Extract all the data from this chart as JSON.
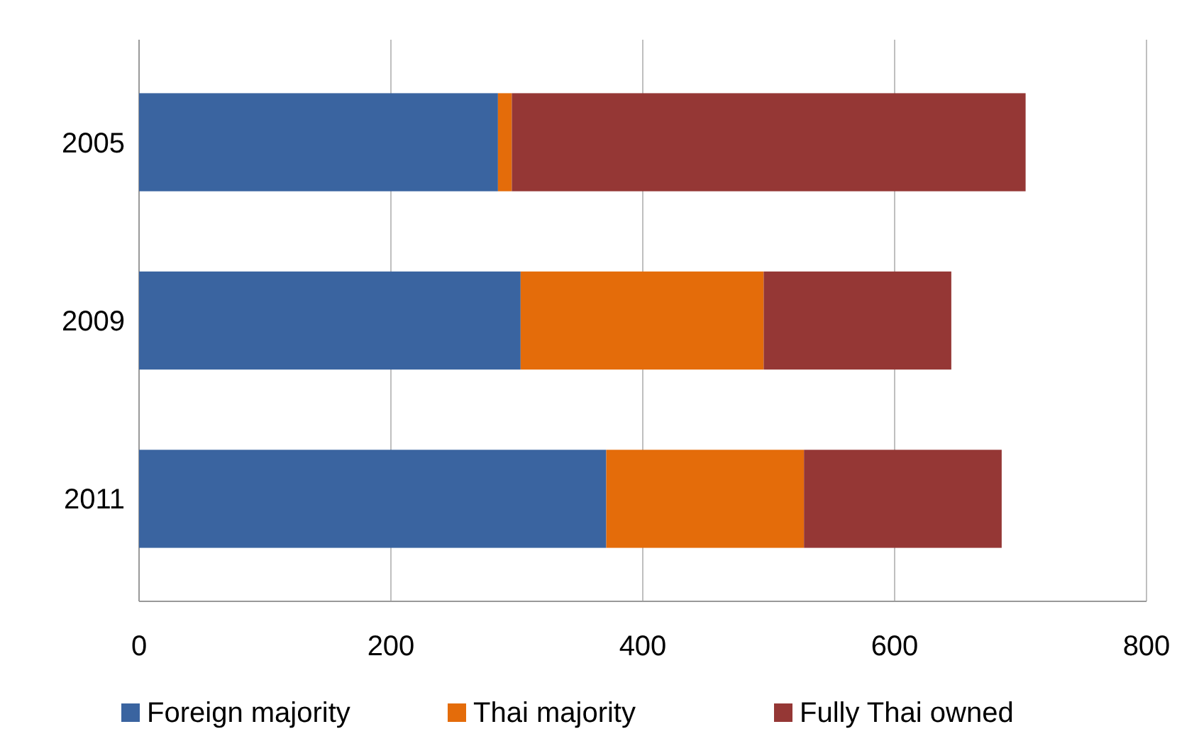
{
  "chart_data": {
    "type": "bar",
    "orientation": "horizontal",
    "stacked": true,
    "categories": [
      "2005",
      "2009",
      "2011"
    ],
    "series": [
      {
        "name": "Foreign majority",
        "color": "#3a64a0",
        "values": [
          285,
          303,
          371
        ]
      },
      {
        "name": "Thai majority",
        "color": "#e46c0a",
        "values": [
          11,
          193,
          157
        ]
      },
      {
        "name": "Fully Thai owned",
        "color": "#953735",
        "values": [
          408,
          149,
          157
        ]
      }
    ],
    "xlim": [
      0,
      800
    ],
    "xticks": [
      0,
      200,
      400,
      600,
      800
    ],
    "grid": "x",
    "legend": "bottom"
  }
}
